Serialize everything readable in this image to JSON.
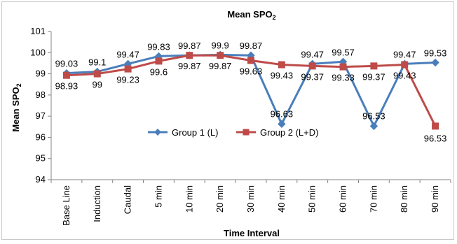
{
  "chart_data": {
    "type": "line",
    "title": "Mean SPO",
    "title_sub": "2",
    "xlabel": "Time Interval",
    "ylabel": "Mean SPO",
    "ylabel_sub": "2",
    "ylim": [
      94,
      101
    ],
    "yticks": [
      94,
      95,
      96,
      97,
      98,
      99,
      100,
      101
    ],
    "grid": false,
    "legend_position": "bottom-center",
    "categories": [
      "Base Line",
      "Induction",
      "Caudal",
      "5 min",
      "10 min",
      "20 min",
      "30 min",
      "40 min",
      "50 min",
      "60 min",
      "70 min",
      "80 min",
      "90 min"
    ],
    "series": [
      {
        "name": "Group 1 (L)",
        "color": "#4a7ebb",
        "marker": "diamond",
        "values": [
          99.03,
          99.1,
          99.47,
          99.83,
          99.87,
          99.9,
          99.87,
          96.63,
          99.47,
          99.57,
          96.53,
          99.47,
          99.53
        ],
        "labels": [
          "99.03",
          "99.1",
          "99.47",
          "99.83",
          "99.87",
          "99.9",
          "99.87",
          "96.63",
          "99.47",
          "99.57",
          "96.53",
          "99.47",
          "99.53"
        ]
      },
      {
        "name": "Group 2 (L+D)",
        "color": "#be4b48",
        "marker": "square",
        "values": [
          98.93,
          99,
          99.23,
          99.6,
          99.87,
          99.87,
          99.63,
          99.43,
          99.37,
          99.33,
          99.37,
          99.43,
          96.53
        ],
        "labels": [
          "98.93",
          "99",
          "99.23",
          "99.6",
          "99.87",
          "99.87",
          "99.63",
          "99.43",
          "99.37",
          "99.33",
          "99.37",
          "99.43",
          "96.53"
        ]
      }
    ]
  }
}
